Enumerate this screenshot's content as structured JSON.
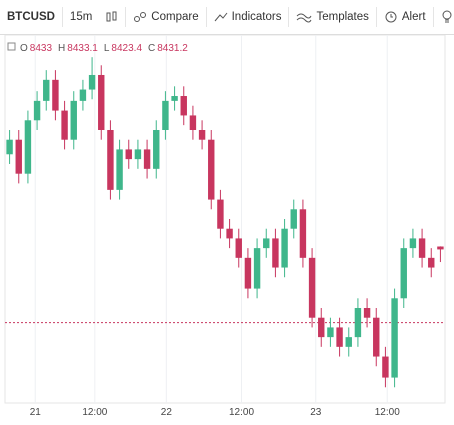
{
  "toolbar": {
    "symbol": "BTCUSD",
    "interval": "15m",
    "buttons": [
      "Compare",
      "Indicators",
      "Templates",
      "Alert"
    ]
  },
  "chart_data": {
    "type": "candlestick",
    "ohlc_labels": [
      "O",
      "H",
      "L",
      "C"
    ],
    "open": [
      8490,
      8499,
      8478,
      8511,
      8523,
      8536,
      8517,
      8499,
      8523,
      8530,
      8539,
      8505,
      8468,
      8493,
      8487,
      8493,
      8481,
      8505,
      8523,
      8526,
      8514,
      8505,
      8499,
      8462,
      8444,
      8438,
      8426,
      8407,
      8432,
      8438,
      8420,
      8444,
      8456,
      8426,
      8389,
      8377,
      8383,
      8371,
      8377,
      8395,
      8389,
      8365,
      8352,
      8401,
      8432,
      8438,
      8426,
      8433.0
    ],
    "high": [
      8505,
      8505,
      8517,
      8529,
      8542,
      8542,
      8523,
      8529,
      8536,
      8550,
      8545,
      8511,
      8499,
      8499,
      8499,
      8499,
      8511,
      8529,
      8532,
      8532,
      8520,
      8511,
      8505,
      8468,
      8450,
      8444,
      8432,
      8438,
      8444,
      8444,
      8450,
      8462,
      8462,
      8432,
      8395,
      8389,
      8389,
      8383,
      8401,
      8401,
      8395,
      8371,
      8407,
      8438,
      8444,
      8444,
      8432,
      8433.1
    ],
    "low": [
      8484,
      8472,
      8472,
      8505,
      8517,
      8511,
      8493,
      8493,
      8517,
      8524,
      8499,
      8462,
      8462,
      8481,
      8481,
      8475,
      8475,
      8499,
      8517,
      8508,
      8499,
      8493,
      8456,
      8438,
      8432,
      8420,
      8401,
      8401,
      8426,
      8414,
      8414,
      8438,
      8420,
      8383,
      8371,
      8371,
      8365,
      8365,
      8371,
      8383,
      8359,
      8346,
      8346,
      8395,
      8426,
      8420,
      8414,
      8423.4
    ],
    "close": [
      8499,
      8478,
      8511,
      8523,
      8536,
      8517,
      8499,
      8523,
      8530,
      8539,
      8505,
      8468,
      8493,
      8487,
      8493,
      8481,
      8505,
      8523,
      8526,
      8514,
      8505,
      8499,
      8462,
      8444,
      8438,
      8426,
      8407,
      8432,
      8438,
      8420,
      8444,
      8456,
      8426,
      8389,
      8377,
      8383,
      8371,
      8377,
      8395,
      8389,
      8365,
      8352,
      8401,
      8432,
      8438,
      8426,
      8420,
      8431.2
    ],
    "up_color": "#3fb68b",
    "down_color": "#c8365f",
    "ylim": [
      8340,
      8560
    ],
    "xticks": [
      {
        "value": 2.8,
        "label": "21"
      },
      {
        "value": 9.3,
        "label": "12:00"
      },
      {
        "value": 17.1,
        "label": "22"
      },
      {
        "value": 25.3,
        "label": "12:00"
      },
      {
        "value": 33.4,
        "label": "23"
      },
      {
        "value": 41.2,
        "label": "12:00"
      }
    ],
    "price_line": 8386,
    "price_line_color": "#c8365f",
    "grid": true
  }
}
